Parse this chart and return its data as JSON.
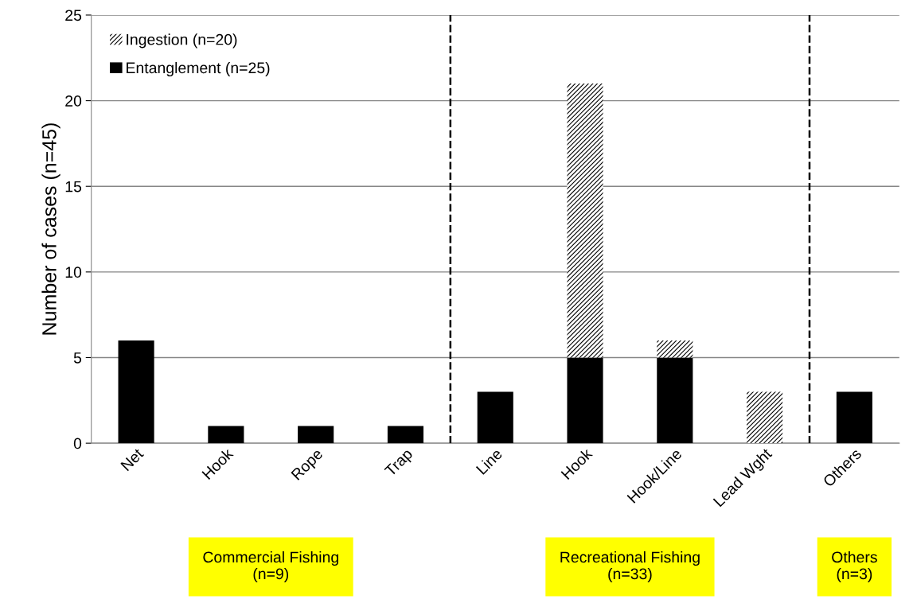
{
  "chart_data": {
    "type": "bar",
    "stacked": true,
    "ylabel": "Number of cases (n=45)",
    "categories": [
      "Net",
      "Hook",
      "Rope",
      "Trap",
      "Line",
      "Hook",
      "Hook/Line",
      "Lead Wght",
      "Others"
    ],
    "series": [
      {
        "name": "Entanglement (n=25)",
        "color": "#000000",
        "values": [
          6,
          1,
          1,
          1,
          3,
          5,
          5,
          0,
          3
        ]
      },
      {
        "name": "Ingestion (n=20)",
        "color": "#ffffff",
        "values": [
          0,
          0,
          0,
          0,
          0,
          16,
          1,
          3,
          0
        ]
      }
    ],
    "ylim": [
      0,
      25
    ],
    "yticks": [
      0,
      5,
      10,
      15,
      20,
      25
    ],
    "grid": "y",
    "legend": "top left",
    "annotations": [
      "Commercial Fishing\n(n=9)",
      "Recreational Fishing\n(n=33)",
      "Others\n(n=3)"
    ]
  }
}
